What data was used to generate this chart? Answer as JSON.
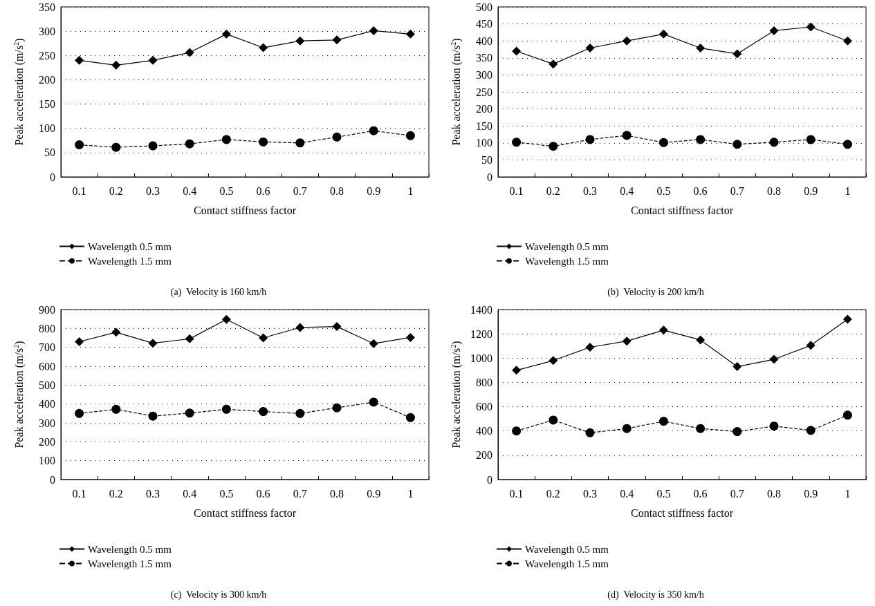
{
  "chart_data": [
    {
      "type": "line",
      "title": "(a)  Velocity is 160 km/h",
      "xlabel": "Contact stiffness factor",
      "ylabel": "Peak acceleration (m/s$^{2}$)",
      "categories": [
        "0.1",
        "0.2",
        "0.3",
        "0.4",
        "0.5",
        "0.6",
        "0.7",
        "0.8",
        "0.9",
        "1"
      ],
      "ylim": [
        0,
        350
      ],
      "yticks": [
        0,
        50,
        100,
        150,
        200,
        250,
        300,
        350
      ],
      "grid": "y",
      "legend": "bottom left",
      "series": [
        {
          "name": "Wavelength 0.5 mm",
          "color": "#000000",
          "marker": "diamond",
          "line_style": "solid",
          "values": [
            240,
            230,
            240,
            256,
            294,
            266,
            280,
            282,
            301,
            294
          ]
        },
        {
          "name": "Wavelength 1.5 mm",
          "color": "#000000",
          "marker": "circle",
          "line_style": "dashed",
          "values": [
            66,
            61,
            64,
            68,
            77,
            72,
            70,
            82,
            95,
            85
          ]
        }
      ]
    },
    {
      "type": "line",
      "title": "(b)  Velocity is 200 km/h",
      "xlabel": "Contact stiffness factor",
      "ylabel": "Peak acceleration (m/s$^{2}$)",
      "categories": [
        "0.1",
        "0.2",
        "0.3",
        "0.4",
        "0.5",
        "0.6",
        "0.7",
        "0.8",
        "0.9",
        "1"
      ],
      "ylim": [
        0,
        500
      ],
      "yticks": [
        0,
        50,
        100,
        150,
        200,
        250,
        300,
        350,
        400,
        450,
        500
      ],
      "grid": "y",
      "legend": "bottom left",
      "series": [
        {
          "name": "Wavelength 0.5 mm",
          "color": "#000000",
          "marker": "diamond",
          "line_style": "solid",
          "values": [
            370,
            332,
            379,
            400,
            420,
            379,
            362,
            430,
            441,
            400
          ]
        },
        {
          "name": "Wavelength 1.5 mm",
          "color": "#000000",
          "marker": "circle",
          "line_style": "dashed",
          "values": [
            102,
            90,
            110,
            122,
            101,
            110,
            96,
            102,
            110,
            96
          ]
        }
      ]
    },
    {
      "type": "line",
      "title": "(c)  Velocity is 300 km/h",
      "xlabel": "Contact stiffness factor",
      "ylabel": "Peak acceleration (m/s$^{2}$)",
      "categories": [
        "0.1",
        "0.2",
        "0.3",
        "0.4",
        "0.5",
        "0.6",
        "0.7",
        "0.8",
        "0.9",
        "1"
      ],
      "ylim": [
        0,
        900
      ],
      "yticks": [
        0,
        100,
        200,
        300,
        400,
        500,
        600,
        700,
        800,
        900
      ],
      "grid": "y",
      "legend": "bottom left",
      "series": [
        {
          "name": "Wavelength 0.5 mm",
          "color": "#000000",
          "marker": "diamond",
          "line_style": "solid",
          "values": [
            730,
            780,
            722,
            745,
            848,
            750,
            805,
            810,
            720,
            752
          ]
        },
        {
          "name": "Wavelength 1.5 mm",
          "color": "#000000",
          "marker": "circle",
          "line_style": "dashed",
          "values": [
            350,
            372,
            336,
            352,
            372,
            360,
            350,
            380,
            410,
            328
          ]
        }
      ]
    },
    {
      "type": "line",
      "title": "(d)  Velocity is 350 km/h",
      "xlabel": "Contact stiffness factor",
      "ylabel": "Peak acceleration (m/s$^{2}$)",
      "categories": [
        "0.1",
        "0.2",
        "0.3",
        "0.4",
        "0.5",
        "0.6",
        "0.7",
        "0.8",
        "0.9",
        "1"
      ],
      "ylim": [
        0,
        1400
      ],
      "yticks": [
        0,
        200,
        400,
        600,
        800,
        1000,
        1200,
        1400
      ],
      "grid": "y",
      "legend": "bottom left",
      "series": [
        {
          "name": "Wavelength 0.5 mm",
          "color": "#000000",
          "marker": "diamond",
          "line_style": "solid",
          "values": [
            900,
            980,
            1090,
            1140,
            1230,
            1150,
            930,
            990,
            1105,
            1320
          ]
        },
        {
          "name": "Wavelength 1.5 mm",
          "color": "#000000",
          "marker": "circle",
          "line_style": "dashed",
          "values": [
            400,
            490,
            385,
            420,
            480,
            420,
            395,
            440,
            405,
            530
          ]
        }
      ]
    }
  ]
}
